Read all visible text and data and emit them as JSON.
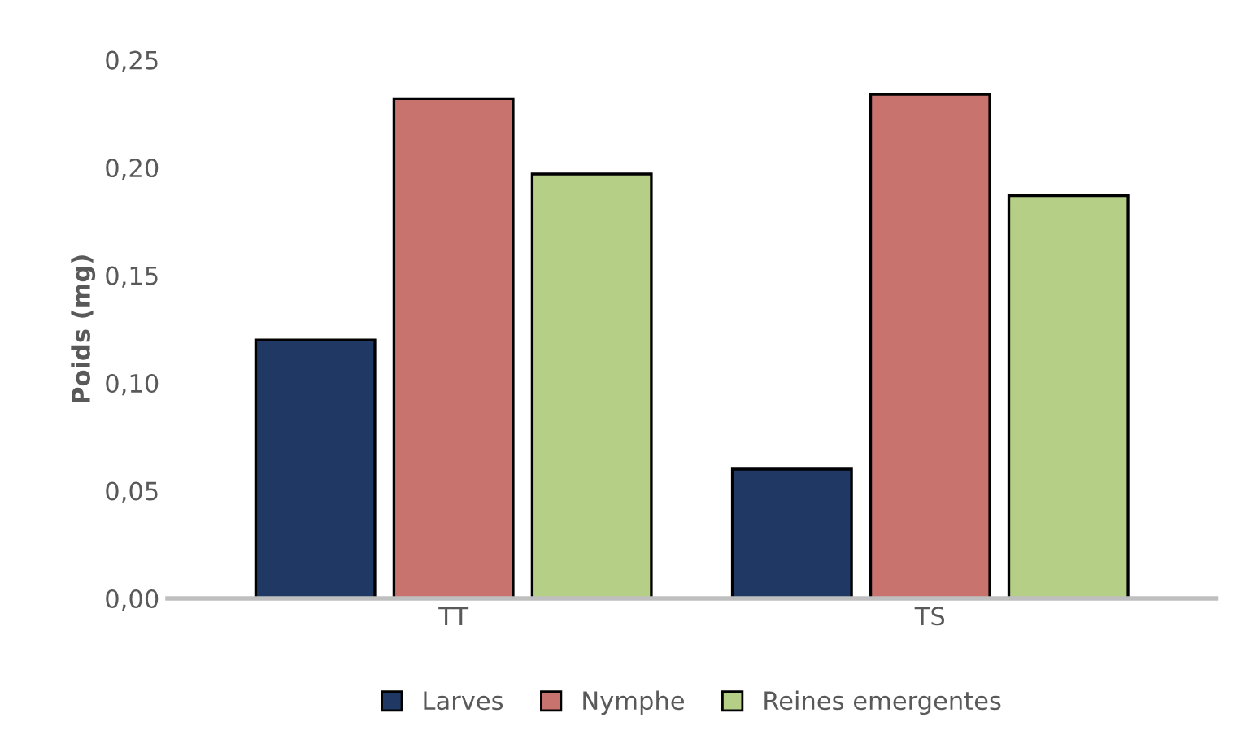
{
  "chart_data": {
    "type": "bar",
    "ylabel": "Poids (mg)",
    "categories": [
      "TT",
      "TS"
    ],
    "series": [
      {
        "name": "Larves",
        "color": "#1f3864",
        "values": [
          0.12,
          0.06
        ]
      },
      {
        "name": "Nymphe",
        "color": "#c9736f",
        "values": [
          0.232,
          0.234
        ]
      },
      {
        "name": "Reines emergentes",
        "color": "#b5cf87",
        "values": [
          0.197,
          0.187
        ]
      }
    ],
    "ylim": [
      0,
      0.25
    ],
    "yticks": [
      {
        "value": 0,
        "label": "0,00"
      },
      {
        "value": 0.05,
        "label": "0,05"
      },
      {
        "value": 0.1,
        "label": "0,10"
      },
      {
        "value": 0.15,
        "label": "0,15"
      },
      {
        "value": 0.2,
        "label": "0,20"
      },
      {
        "value": 0.25,
        "label": "0,25"
      }
    ],
    "grid": false,
    "legend": "bottom"
  }
}
